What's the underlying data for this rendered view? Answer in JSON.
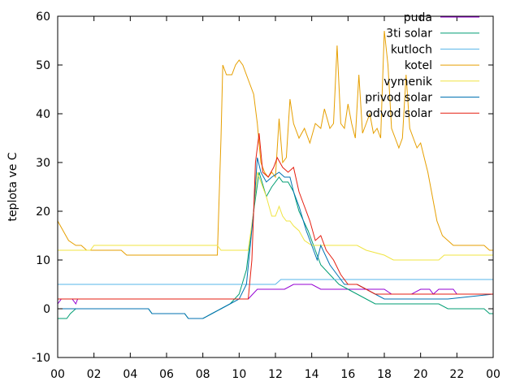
{
  "chart_data": {
    "type": "line",
    "ylabel": "teplota ve C",
    "xlabel": "",
    "x_ticks": [
      "00",
      "02",
      "04",
      "06",
      "08",
      "10",
      "12",
      "14",
      "16",
      "18",
      "20",
      "22",
      "00"
    ],
    "xlim": [
      0,
      24
    ],
    "ylim": [
      -10,
      60
    ],
    "y_ticks": [
      -10,
      0,
      10,
      20,
      30,
      40,
      50,
      60
    ],
    "grid": false,
    "legend_position": "top-right",
    "series": [
      {
        "name": "puda",
        "color": "#9400d3",
        "points": [
          [
            0,
            1
          ],
          [
            0.2,
            2
          ],
          [
            0.8,
            2
          ],
          [
            1.0,
            1
          ],
          [
            1.1,
            2
          ],
          [
            10.5,
            2
          ],
          [
            11.0,
            4
          ],
          [
            12.5,
            4
          ],
          [
            13.0,
            5
          ],
          [
            14.0,
            5
          ],
          [
            14.5,
            4
          ],
          [
            17.0,
            4
          ],
          [
            18.0,
            4
          ],
          [
            18.4,
            3
          ],
          [
            19.5,
            3
          ],
          [
            20.0,
            4
          ],
          [
            20.5,
            4
          ],
          [
            20.7,
            3
          ],
          [
            21.0,
            4
          ],
          [
            21.8,
            4
          ],
          [
            22.0,
            3
          ],
          [
            24,
            3
          ]
        ]
      },
      {
        "name": "3ti solar",
        "color": "#009e73",
        "points": [
          [
            0,
            -2
          ],
          [
            0.5,
            -2
          ],
          [
            0.7,
            -1
          ],
          [
            1.0,
            0
          ],
          [
            5.0,
            0
          ],
          [
            5.2,
            -1
          ],
          [
            7.0,
            -1
          ],
          [
            7.2,
            -2
          ],
          [
            8.0,
            -2
          ],
          [
            8.5,
            -1
          ],
          [
            9.0,
            0
          ],
          [
            9.5,
            1
          ],
          [
            10.0,
            3
          ],
          [
            10.4,
            8
          ],
          [
            10.8,
            20
          ],
          [
            11.1,
            28
          ],
          [
            11.5,
            23
          ],
          [
            11.8,
            25
          ],
          [
            12.2,
            27
          ],
          [
            12.4,
            26
          ],
          [
            12.7,
            26
          ],
          [
            13.0,
            24
          ],
          [
            13.3,
            20
          ],
          [
            13.8,
            16
          ],
          [
            14.2,
            12
          ],
          [
            14.5,
            9
          ],
          [
            15.0,
            7
          ],
          [
            15.5,
            5
          ],
          [
            16.0,
            4
          ],
          [
            16.5,
            3
          ],
          [
            17.0,
            2
          ],
          [
            17.5,
            1
          ],
          [
            18.0,
            1
          ],
          [
            21.0,
            1
          ],
          [
            21.5,
            0
          ],
          [
            23.5,
            0
          ],
          [
            23.8,
            -1
          ],
          [
            24,
            -1
          ]
        ]
      },
      {
        "name": "kutloch",
        "color": "#56b4e9",
        "points": [
          [
            0,
            5
          ],
          [
            12.0,
            5
          ],
          [
            12.3,
            6
          ],
          [
            24,
            6
          ]
        ]
      },
      {
        "name": "kotel",
        "color": "#e69f00",
        "points": [
          [
            0,
            18
          ],
          [
            0.3,
            16
          ],
          [
            0.6,
            14
          ],
          [
            1.0,
            13
          ],
          [
            1.3,
            13
          ],
          [
            1.6,
            12
          ],
          [
            3.5,
            12
          ],
          [
            3.8,
            11
          ],
          [
            8.8,
            11
          ],
          [
            9.0,
            35
          ],
          [
            9.1,
            50
          ],
          [
            9.3,
            48
          ],
          [
            9.6,
            48
          ],
          [
            9.8,
            50
          ],
          [
            10.0,
            51
          ],
          [
            10.2,
            50
          ],
          [
            10.5,
            47
          ],
          [
            10.8,
            44
          ],
          [
            11.0,
            38
          ],
          [
            11.2,
            30
          ],
          [
            11.4,
            28
          ],
          [
            11.6,
            27
          ],
          [
            11.8,
            28
          ],
          [
            12.0,
            27
          ],
          [
            12.2,
            39
          ],
          [
            12.4,
            30
          ],
          [
            12.6,
            31
          ],
          [
            12.8,
            43
          ],
          [
            13.0,
            38
          ],
          [
            13.3,
            35
          ],
          [
            13.6,
            37
          ],
          [
            13.9,
            34
          ],
          [
            14.2,
            38
          ],
          [
            14.5,
            37
          ],
          [
            14.7,
            41
          ],
          [
            15.0,
            37
          ],
          [
            15.2,
            38
          ],
          [
            15.4,
            54
          ],
          [
            15.6,
            38
          ],
          [
            15.8,
            37
          ],
          [
            16.0,
            42
          ],
          [
            16.2,
            38
          ],
          [
            16.4,
            35
          ],
          [
            16.6,
            48
          ],
          [
            16.8,
            36
          ],
          [
            17.0,
            38
          ],
          [
            17.2,
            40
          ],
          [
            17.4,
            36
          ],
          [
            17.6,
            37
          ],
          [
            17.8,
            35
          ],
          [
            18.0,
            57
          ],
          [
            18.2,
            50
          ],
          [
            18.4,
            37
          ],
          [
            18.6,
            35
          ],
          [
            18.8,
            33
          ],
          [
            19.0,
            35
          ],
          [
            19.2,
            48
          ],
          [
            19.4,
            37
          ],
          [
            19.6,
            35
          ],
          [
            19.8,
            33
          ],
          [
            20.0,
            34
          ],
          [
            20.2,
            31
          ],
          [
            20.4,
            28
          ],
          [
            20.6,
            24
          ],
          [
            20.9,
            18
          ],
          [
            21.2,
            15
          ],
          [
            21.5,
            14
          ],
          [
            21.8,
            13
          ],
          [
            22.5,
            13
          ],
          [
            23.5,
            13
          ],
          [
            23.8,
            12
          ],
          [
            24,
            12
          ]
        ]
      },
      {
        "name": "vymenik",
        "color": "#f0e442",
        "points": [
          [
            0,
            12
          ],
          [
            1.8,
            12
          ],
          [
            2.0,
            13
          ],
          [
            8.8,
            13
          ],
          [
            9.0,
            12
          ],
          [
            10.5,
            12
          ],
          [
            10.8,
            20
          ],
          [
            11.0,
            28
          ],
          [
            11.2,
            26
          ],
          [
            11.5,
            23
          ],
          [
            11.8,
            19
          ],
          [
            12.0,
            19
          ],
          [
            12.2,
            21
          ],
          [
            12.4,
            19
          ],
          [
            12.6,
            18
          ],
          [
            12.8,
            18
          ],
          [
            13.0,
            17
          ],
          [
            13.3,
            16
          ],
          [
            13.6,
            14
          ],
          [
            14.0,
            13
          ],
          [
            15.0,
            13
          ],
          [
            16.0,
            13
          ],
          [
            16.5,
            13
          ],
          [
            17.0,
            12
          ],
          [
            18.0,
            11
          ],
          [
            18.5,
            10
          ],
          [
            21.0,
            10
          ],
          [
            21.3,
            11
          ],
          [
            24,
            11
          ]
        ]
      },
      {
        "name": "privod solar",
        "color": "#0072b2",
        "points": [
          [
            0,
            0
          ],
          [
            5.0,
            0
          ],
          [
            5.2,
            -1
          ],
          [
            7.0,
            -1
          ],
          [
            7.2,
            -2
          ],
          [
            8.0,
            -2
          ],
          [
            8.5,
            -1
          ],
          [
            9.0,
            0
          ],
          [
            9.5,
            1
          ],
          [
            10.0,
            2
          ],
          [
            10.4,
            5
          ],
          [
            10.8,
            20
          ],
          [
            11.0,
            31
          ],
          [
            11.2,
            28
          ],
          [
            11.5,
            26
          ],
          [
            11.8,
            27
          ],
          [
            12.2,
            28
          ],
          [
            12.5,
            27
          ],
          [
            12.8,
            27
          ],
          [
            13.0,
            24
          ],
          [
            13.3,
            21
          ],
          [
            13.7,
            16
          ],
          [
            14.0,
            13
          ],
          [
            14.3,
            10
          ],
          [
            14.5,
            13
          ],
          [
            15.0,
            9
          ],
          [
            15.4,
            7
          ],
          [
            15.8,
            5
          ],
          [
            16.5,
            5
          ],
          [
            17.0,
            4
          ],
          [
            17.5,
            3
          ],
          [
            18.0,
            2
          ],
          [
            21.5,
            2
          ],
          [
            24,
            3
          ]
        ]
      },
      {
        "name": "odvod solar",
        "color": "#e51e10",
        "points": [
          [
            0,
            2
          ],
          [
            10.5,
            2
          ],
          [
            10.7,
            10
          ],
          [
            10.9,
            30
          ],
          [
            11.1,
            36
          ],
          [
            11.3,
            28
          ],
          [
            11.6,
            27
          ],
          [
            11.9,
            29
          ],
          [
            12.1,
            31
          ],
          [
            12.4,
            29
          ],
          [
            12.7,
            28
          ],
          [
            13.0,
            29
          ],
          [
            13.3,
            24
          ],
          [
            13.6,
            21
          ],
          [
            13.9,
            18
          ],
          [
            14.2,
            14
          ],
          [
            14.5,
            15
          ],
          [
            14.8,
            12
          ],
          [
            15.2,
            10
          ],
          [
            15.6,
            7
          ],
          [
            16.0,
            5
          ],
          [
            16.5,
            5
          ],
          [
            17.0,
            4
          ],
          [
            17.5,
            3
          ],
          [
            18.0,
            3
          ],
          [
            24,
            3
          ]
        ]
      }
    ]
  }
}
